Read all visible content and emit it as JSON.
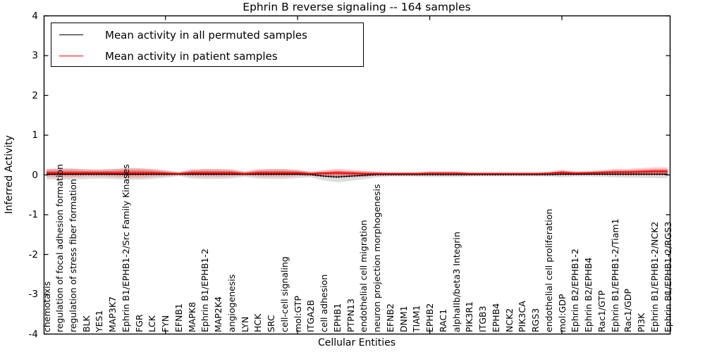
{
  "chart_data": {
    "type": "line",
    "title": "Ephrin B reverse signaling -- 164 samples",
    "xlabel": "Cellular Entities",
    "ylabel": "Inferred Activity",
    "ylim": [
      -4,
      4
    ],
    "yticks": [
      4,
      3,
      2,
      1,
      0,
      -1,
      -2,
      -3,
      -4
    ],
    "x_major_ticks": [
      10,
      20,
      30,
      40
    ],
    "grid": false,
    "legend_position": "upper left",
    "categories": [
      "chemotaxis",
      "regulation of focal adhesion formation",
      "regulation of stress fiber formation",
      "BLK",
      "YES1",
      "MAP3K7",
      "Ephrin B1/EPHB1-2/Src Family Kinases",
      "FGR",
      "LCK",
      "FYN",
      "EFNB1",
      "MAPK8",
      "Ephrin B1/EPHB1-2",
      "MAP2K4",
      "angiogenesis",
      "LYN",
      "HCK",
      "SRC",
      "cell-cell signaling",
      "mol:GTP",
      "ITGA2B",
      "cell adhesion",
      "EPHB1",
      "PTPN13",
      "endothelial cell migration",
      "neuron projection morphogenesis",
      "EFNB2",
      "DNM1",
      "TIAM1",
      "EPHB2",
      "RAC1",
      "alphaIIb/beta3 Integrin",
      "PIK3R1",
      "ITGB3",
      "EPHB4",
      "NCK2",
      "PIK3CA",
      "RGS3",
      "endothelial cell proliferation",
      "mol:GDP",
      "Ephrin B2/EPHB1-2",
      "Ephrin B2/EPHB4",
      "Rac1/GTP",
      "Ephrin B1/EPHB1-2/Tiam1",
      "Rac1/GDP",
      "PI3K",
      "Ephrin B1/EPHB1-2/NCK2",
      "Ephrin B1/EPHB1-2/RGS3"
    ],
    "series": [
      {
        "name": "Mean activity in all permuted samples",
        "color": "#000000",
        "band_color": "#9a9a9a",
        "values": [
          0.02,
          0.02,
          0.02,
          0.02,
          0.02,
          0.02,
          0.02,
          0.02,
          0.02,
          0.02,
          0.02,
          0.02,
          0.02,
          0.02,
          0.02,
          0.02,
          0.02,
          0.02,
          0.02,
          0.02,
          0.01,
          -0.03,
          -0.05,
          -0.03,
          -0.01,
          0.01,
          0.01,
          0.01,
          0.01,
          0.01,
          0.01,
          0.01,
          0.01,
          0.01,
          0.01,
          0.01,
          0.01,
          0.01,
          0.01,
          0.02,
          0.02,
          0.02,
          0.02,
          0.02,
          0.02,
          0.02,
          0.02,
          0.02
        ],
        "band_halfwidth": [
          0.13,
          0.14,
          0.14,
          0.12,
          0.11,
          0.12,
          0.14,
          0.14,
          0.12,
          0.09,
          0.05,
          0.11,
          0.12,
          0.12,
          0.11,
          0.07,
          0.11,
          0.12,
          0.12,
          0.1,
          0.07,
          0.11,
          0.13,
          0.12,
          0.1,
          0.07,
          0.05,
          0.05,
          0.05,
          0.06,
          0.06,
          0.06,
          0.05,
          0.045,
          0.045,
          0.045,
          0.045,
          0.045,
          0.05,
          0.08,
          0.06,
          0.06,
          0.07,
          0.08,
          0.09,
          0.09,
          0.1,
          0.1
        ]
      },
      {
        "name": "Mean activity in patient samples",
        "color": "#ff0000",
        "band_color": "#f08080",
        "values": [
          0.05,
          0.05,
          0.05,
          0.05,
          0.05,
          0.05,
          0.05,
          0.05,
          0.05,
          0.04,
          0.03,
          0.05,
          0.05,
          0.05,
          0.05,
          0.03,
          0.05,
          0.05,
          0.05,
          0.05,
          0.03,
          0.04,
          0.05,
          0.04,
          0.03,
          0.03,
          0.03,
          0.03,
          0.03,
          0.04,
          0.04,
          0.04,
          0.03,
          0.03,
          0.03,
          0.03,
          0.03,
          0.03,
          0.04,
          0.06,
          0.04,
          0.05,
          0.06,
          0.07,
          0.07,
          0.08,
          0.09,
          0.09
        ],
        "band_halfwidth": [
          0.1,
          0.11,
          0.11,
          0.09,
          0.09,
          0.1,
          0.12,
          0.12,
          0.1,
          0.07,
          0.04,
          0.09,
          0.1,
          0.1,
          0.09,
          0.05,
          0.09,
          0.1,
          0.1,
          0.08,
          0.05,
          0.08,
          0.1,
          0.09,
          0.07,
          0.05,
          0.04,
          0.04,
          0.04,
          0.05,
          0.05,
          0.05,
          0.04,
          0.035,
          0.035,
          0.035,
          0.035,
          0.035,
          0.04,
          0.07,
          0.05,
          0.05,
          0.06,
          0.08,
          0.08,
          0.09,
          0.1,
          0.1
        ]
      }
    ],
    "colors": {
      "axis": "#000000",
      "background": "#ffffff",
      "patient_line": "#ff0000",
      "permuted_line": "#000000"
    }
  }
}
